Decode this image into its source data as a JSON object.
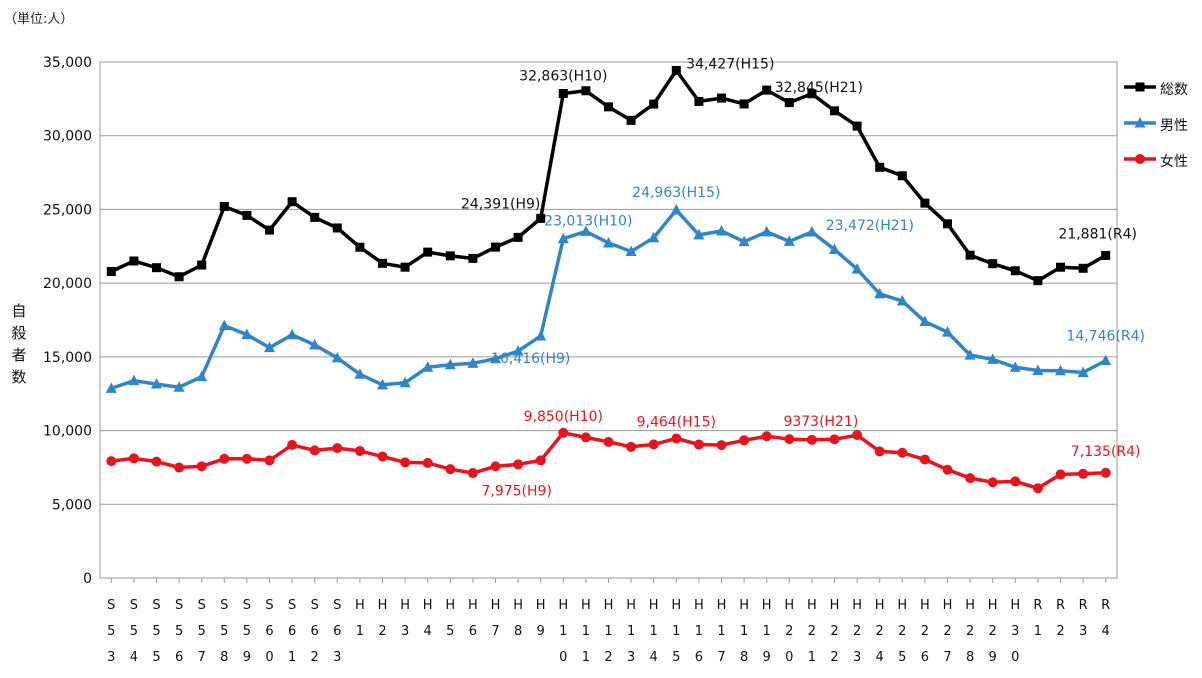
{
  "unit_label": "（単位:人）",
  "ylabel": "自殺者数",
  "chart_data": {
    "type": "line",
    "title": "",
    "xlabel": "",
    "ylabel": "自殺者数",
    "unit": "（単位:人）",
    "ylim": [
      0,
      35000
    ],
    "yticks": [
      0,
      5000,
      10000,
      15000,
      20000,
      25000,
      30000,
      35000
    ],
    "ytick_labels": [
      "0",
      "5,000",
      "10,000",
      "15,000",
      "20,000",
      "25,000",
      "30,000",
      "35,000"
    ],
    "grid": true,
    "legend_position": "right",
    "categories": [
      "S53",
      "S54",
      "S55",
      "S56",
      "S57",
      "S58",
      "S59",
      "S60",
      "S61",
      "S62",
      "S63",
      "H1",
      "H2",
      "H3",
      "H4",
      "H5",
      "H6",
      "H7",
      "H8",
      "H9",
      "H10",
      "H11",
      "H12",
      "H13",
      "H14",
      "H15",
      "H16",
      "H17",
      "H18",
      "H19",
      "H20",
      "H21",
      "H22",
      "H23",
      "H24",
      "H25",
      "H26",
      "H27",
      "H28",
      "H29",
      "H30",
      "R1",
      "R2",
      "R3",
      "R4"
    ],
    "series": [
      {
        "name": "総数",
        "color": "#000000",
        "marker": "square",
        "values": [
          20788,
          21503,
          21048,
          20434,
          21228,
          25202,
          24596,
          23599,
          25524,
          24460,
          23742,
          22436,
          21346,
          21084,
          22104,
          21851,
          21679,
          22445,
          23104,
          24391,
          32863,
          33048,
          31957,
          31042,
          32143,
          34427,
          32325,
          32552,
          32155,
          33093,
          32249,
          32845,
          31690,
          30651,
          27858,
          27283,
          25427,
          24025,
          21897,
          21321,
          20840,
          20169,
          21081,
          21007,
          21881
        ]
      },
      {
        "name": "男性",
        "color": "#2e86c8",
        "marker": "triangle",
        "values": [
          12859,
          13386,
          13155,
          12942,
          13654,
          17116,
          16508,
          15624,
          16497,
          15802,
          14934,
          13818,
          13102,
          13242,
          14296,
          14468,
          14560,
          14874,
          15393,
          16416,
          23013,
          23512,
          22727,
          22144,
          23080,
          24963,
          23272,
          23540,
          22813,
          23478,
          22831,
          23472,
          22283,
          20955,
          19273,
          18787,
          17386,
          16681,
          15121,
          14826,
          14290,
          14078,
          14055,
          13939,
          14746
        ]
      },
      {
        "name": "女性",
        "color": "#e8141c",
        "marker": "circle",
        "values": [
          7929,
          8117,
          7893,
          7492,
          7574,
          8086,
          8088,
          7975,
          9027,
          8658,
          8808,
          8618,
          8244,
          7842,
          7808,
          7383,
          7119,
          7571,
          7711,
          7975,
          9850,
          9536,
          9230,
          8898,
          9063,
          9464,
          9053,
          9012,
          9342,
          9615,
          9418,
          9373,
          9407,
          9696,
          8585,
          8496,
          8041,
          7344,
          6776,
          6495,
          6550,
          6091,
          7026,
          7068,
          7135
        ]
      }
    ],
    "annotations": [
      {
        "series": "総数",
        "category": "H9",
        "text": "24,391(H9)"
      },
      {
        "series": "総数",
        "category": "H10",
        "text": "32,863(H10)"
      },
      {
        "series": "総数",
        "category": "H15",
        "text": "34,427(H15)"
      },
      {
        "series": "総数",
        "category": "H21",
        "text": "32,845(H21)"
      },
      {
        "series": "総数",
        "category": "R4",
        "text": "21,881(R4)"
      },
      {
        "series": "男性",
        "category": "H9",
        "text": "16,416(H9)"
      },
      {
        "series": "男性",
        "category": "H10",
        "text": "23,013(H10)"
      },
      {
        "series": "男性",
        "category": "H15",
        "text": "24,963(H15)"
      },
      {
        "series": "男性",
        "category": "H21",
        "text": "23,472(H21)"
      },
      {
        "series": "男性",
        "category": "R4",
        "text": "14,746(R4)"
      },
      {
        "series": "女性",
        "category": "H9",
        "text": "7,975(H9)"
      },
      {
        "series": "女性",
        "category": "H10",
        "text": "9,850(H10)"
      },
      {
        "series": "女性",
        "category": "H15",
        "text": "9,464(H15)"
      },
      {
        "series": "女性",
        "category": "H21",
        "text": "9373(H21)"
      },
      {
        "series": "女性",
        "category": "R4",
        "text": "7,135(R4)"
      }
    ]
  }
}
